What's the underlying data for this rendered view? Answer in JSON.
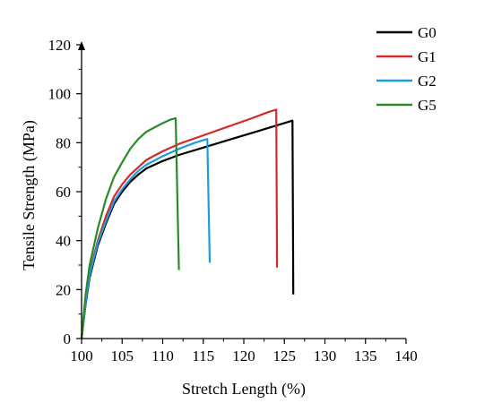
{
  "chart_data": {
    "type": "line",
    "title": "",
    "xlabel": "Stretch Length (%)",
    "ylabel": "Tensile Strength (MPa)",
    "xlim": [
      100,
      140
    ],
    "ylim": [
      0,
      120
    ],
    "x_ticks": [
      100,
      105,
      110,
      115,
      120,
      125,
      130,
      135,
      140
    ],
    "y_ticks": [
      0,
      20,
      40,
      60,
      80,
      100,
      120
    ],
    "grid": false,
    "legend_position": "top-right",
    "series": [
      {
        "name": "G0",
        "color": "#000000",
        "points": [
          [
            100,
            0
          ],
          [
            100.5,
            14
          ],
          [
            101,
            25
          ],
          [
            102,
            38
          ],
          [
            103,
            47
          ],
          [
            104,
            55
          ],
          [
            105,
            60
          ],
          [
            106,
            64
          ],
          [
            107,
            67
          ],
          [
            108,
            69.5
          ],
          [
            110,
            72.5
          ],
          [
            112,
            75
          ],
          [
            115,
            78
          ],
          [
            118,
            81
          ],
          [
            121,
            84
          ],
          [
            124,
            87
          ],
          [
            126,
            89
          ],
          [
            126.1,
            18
          ]
        ]
      },
      {
        "name": "G1",
        "color": "#d42a2a",
        "points": [
          [
            100,
            0
          ],
          [
            100.5,
            15
          ],
          [
            101,
            27
          ],
          [
            102,
            40
          ],
          [
            103,
            50
          ],
          [
            104,
            58
          ],
          [
            105,
            63
          ],
          [
            106,
            67
          ],
          [
            107,
            70
          ],
          [
            108,
            73
          ],
          [
            110,
            76.5
          ],
          [
            112,
            79.5
          ],
          [
            115,
            83
          ],
          [
            118,
            86.5
          ],
          [
            121,
            90
          ],
          [
            123,
            92.5
          ],
          [
            124,
            93.5
          ],
          [
            124.1,
            29
          ]
        ]
      },
      {
        "name": "G2",
        "color": "#1a9ee0",
        "points": [
          [
            100,
            0
          ],
          [
            100.5,
            15
          ],
          [
            101,
            26
          ],
          [
            102,
            39
          ],
          [
            103,
            48
          ],
          [
            104,
            56
          ],
          [
            105,
            61
          ],
          [
            106,
            65
          ],
          [
            107,
            68.5
          ],
          [
            108,
            71
          ],
          [
            110,
            74.5
          ],
          [
            112,
            77.5
          ],
          [
            114,
            80
          ],
          [
            115.5,
            81.5
          ],
          [
            115.8,
            31
          ]
        ]
      },
      {
        "name": "G5",
        "color": "#2a8a2a",
        "points": [
          [
            100,
            0
          ],
          [
            100.5,
            18
          ],
          [
            101,
            30
          ],
          [
            102,
            45
          ],
          [
            103,
            57
          ],
          [
            104,
            66
          ],
          [
            105,
            72
          ],
          [
            106,
            77.5
          ],
          [
            107,
            81.5
          ],
          [
            108,
            84.5
          ],
          [
            110,
            88
          ],
          [
            111,
            89.5
          ],
          [
            111.6,
            90
          ],
          [
            112,
            28
          ]
        ]
      }
    ]
  }
}
